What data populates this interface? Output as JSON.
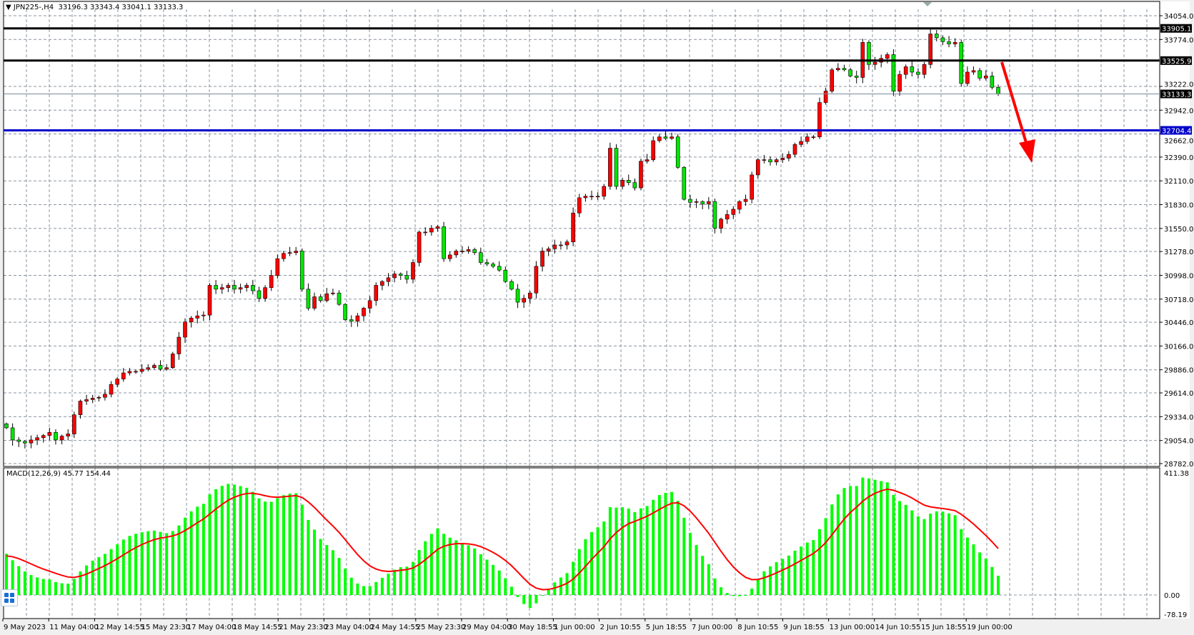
{
  "chart_data": {
    "type": "candlestick",
    "symbol_title": "JPN225-,H4",
    "ohlc_readout": "33196.3 33343.4 33041.1 33133.3",
    "first_open": 29250,
    "closes": [
      29203,
      29060,
      29042,
      29024,
      29060,
      29087,
      29113,
      29149,
      29060,
      29105,
      29131,
      29356,
      29517,
      29535,
      29553,
      29562,
      29598,
      29714,
      29777,
      29849,
      29867,
      29867,
      29893,
      29911,
      29938,
      29893,
      29911,
      30073,
      30270,
      30449,
      30494,
      30521,
      30530,
      30880,
      30835,
      30853,
      30880,
      30835,
      30853,
      30880,
      30817,
      30727,
      30853,
      30996,
      31194,
      31256,
      31265,
      31283,
      30835,
      30611,
      30745,
      30700,
      30781,
      30790,
      30656,
      30476,
      30458,
      30521,
      30611,
      30700,
      30880,
      30925,
      30969,
      31014,
      30996,
      30952,
      31149,
      31507,
      31507,
      31552,
      31570,
      31194,
      31238,
      31283,
      31283,
      31301,
      31265,
      31149,
      31131,
      31104,
      31059,
      30925,
      30835,
      30682,
      30727,
      30790,
      31104,
      31283,
      31310,
      31355,
      31355,
      31391,
      31732,
      31911,
      31929,
      31929,
      31929,
      32045,
      32494,
      32045,
      32117,
      32090,
      32027,
      32341,
      32359,
      32583,
      32628,
      32610,
      32628,
      32269,
      31893,
      31857,
      31866,
      31839,
      31866,
      31552,
      31660,
      31714,
      31776,
      31866,
      31893,
      32180,
      32359,
      32359,
      32332,
      32359,
      32377,
      32422,
      32538,
      32574,
      32628,
      32628,
      33032,
      33166,
      33417,
      33435,
      33417,
      33345,
      33327,
      33740,
      33480,
      33507,
      33552,
      33596,
      33166,
      33363,
      33453,
      33390,
      33363,
      33480,
      33839,
      33794,
      33749,
      33722,
      33740,
      33256,
      33390,
      33408,
      33319,
      33345,
      33211,
      33133.3
    ],
    "ylim": [
      28782.0,
      34054.0
    ],
    "price_ticks": [
      "34054.0",
      "33774.0",
      "33222.0",
      "32942.0",
      "32662.0",
      "32390.0",
      "32110.0",
      "31830.0",
      "31550.0",
      "31278.0",
      "30998.0",
      "30718.0",
      "30446.0",
      "30166.0",
      "29886.0",
      "29614.0",
      "29334.0",
      "29054.0",
      "28782.0"
    ],
    "horizontal_lines": [
      {
        "price": 33905.1,
        "label": "33905.1",
        "color": "#000000"
      },
      {
        "price": 33525.9,
        "label": "33525.9",
        "color": "#000000"
      },
      {
        "price": 32704.4,
        "label": "32704.4",
        "color": "#0000cc"
      }
    ],
    "current_price": {
      "price": 33133.3,
      "label": "33133.3"
    },
    "x_tick_labels": [
      "9 May 2023",
      "11 May 04:00",
      "12 May 14:55",
      "15 May 23:30",
      "17 May 04:00",
      "18 May 14:55",
      "21 May 23:30",
      "23 May 04:00",
      "24 May 14:55",
      "25 May 23:30",
      "29 May 04:00",
      "30 May 18:55",
      "1 Jun 00:00",
      "2 Jun 10:55",
      "5 Jun 18:55",
      "7 Jun 00:00",
      "8 Jun 10:55",
      "9 Jun 18:55",
      "13 Jun 00:00",
      "14 Jun 10:55",
      "15 Jun 18:55",
      "19 Jun 00:00"
    ],
    "bull_color": "#ff0000",
    "bear_color": "#00e600",
    "annotation_arrow": {
      "direction": "down",
      "color": "#ff0000"
    },
    "grid": true,
    "macd": {
      "title": "MACD(12,26,9) 45.77 154.44",
      "fast": 12,
      "slow": 26,
      "signal": 9,
      "main_value": 45.77,
      "signal_value": 154.44,
      "ylim": [
        -78.19,
        411.38
      ],
      "ticks": [
        "411.38",
        "0.00",
        "-78.19"
      ],
      "histogram_color": "#00ff00",
      "signal_color": "#ff0000"
    }
  }
}
